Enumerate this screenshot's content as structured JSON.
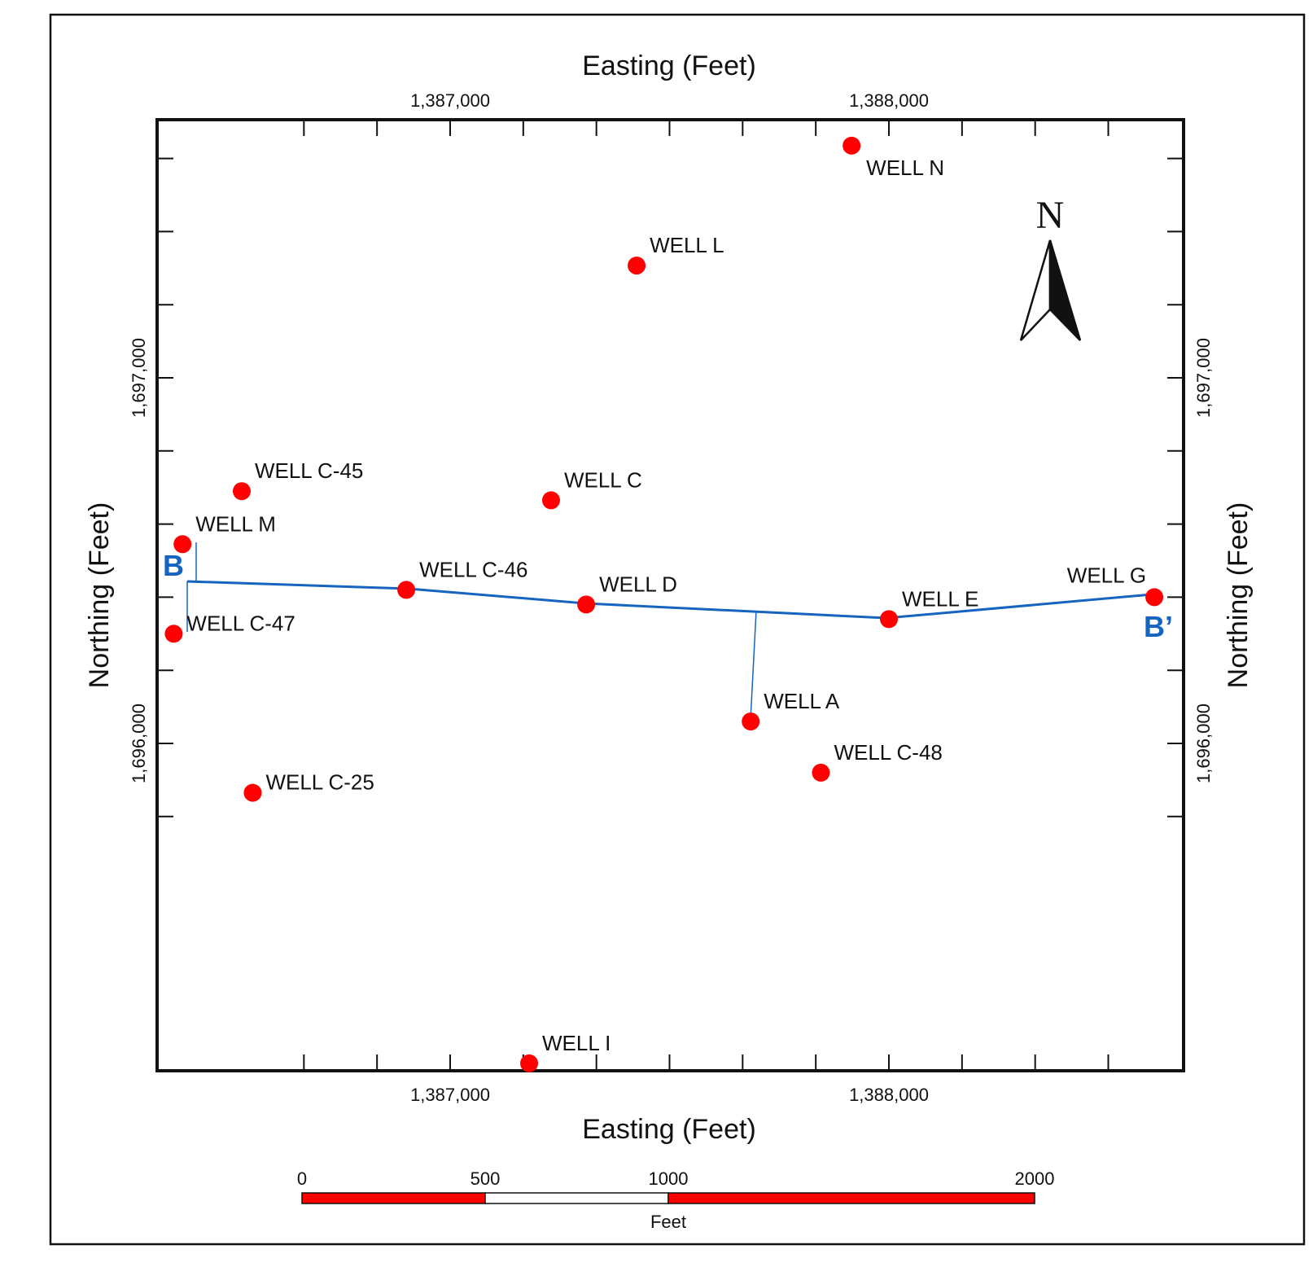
{
  "map": {
    "x_axis_title": "Easting (Feet)",
    "y_axis_title": "Northing (Feet)",
    "x_ticks": [
      {
        "value": 1387000,
        "label": "1,387,000"
      },
      {
        "value": 1388000,
        "label": "1,388,000"
      }
    ],
    "y_ticks": [
      {
        "value": 1697000,
        "label": "1,697,000"
      },
      {
        "value": 1696000,
        "label": "1,696,000"
      }
    ],
    "north_label": "N",
    "colors": {
      "well": "#ff0000",
      "section_line": "#1565c0",
      "frame": "#111111"
    },
    "wells": [
      {
        "name": "WELL N",
        "easting": 1387915,
        "northing": 1697635,
        "label_pos": "below-right"
      },
      {
        "name": "WELL L",
        "easting": 1387425,
        "northing": 1697307,
        "label_pos": "above-right"
      },
      {
        "name": "WELL C-45",
        "easting": 1386525,
        "northing": 1696690,
        "label_pos": "above-right"
      },
      {
        "name": "WELL C",
        "easting": 1387230,
        "northing": 1696665,
        "label_pos": "above-right"
      },
      {
        "name": "WELL M",
        "easting": 1386390,
        "northing": 1696545,
        "label_pos": "above-right"
      },
      {
        "name": "WELL C-46",
        "easting": 1386900,
        "northing": 1696420,
        "label_pos": "above-right"
      },
      {
        "name": "WELL D",
        "easting": 1387310,
        "northing": 1696380,
        "label_pos": "above-right"
      },
      {
        "name": "WELL E",
        "easting": 1388000,
        "northing": 1696340,
        "label_pos": "above-right"
      },
      {
        "name": "WELL G",
        "easting": 1388605,
        "northing": 1696400,
        "label_pos": "above-left"
      },
      {
        "name": "WELL C-47",
        "easting": 1386370,
        "northing": 1696300,
        "label_pos": "right"
      },
      {
        "name": "WELL A",
        "easting": 1387685,
        "northing": 1696060,
        "label_pos": "above-right"
      },
      {
        "name": "WELL C-48",
        "easting": 1387845,
        "northing": 1695920,
        "label_pos": "above-right"
      },
      {
        "name": "WELL C-25",
        "easting": 1386550,
        "northing": 1695865,
        "label_pos": "right"
      },
      {
        "name": "WELL I",
        "easting": 1387180,
        "northing": 1695125,
        "label_pos": "above-right"
      }
    ],
    "cross_section": {
      "start_label": "B",
      "end_label": "B’"
    },
    "scale_bar": {
      "ticks": [
        "0",
        "500",
        "1000",
        "2000"
      ],
      "unit": "Feet"
    }
  }
}
